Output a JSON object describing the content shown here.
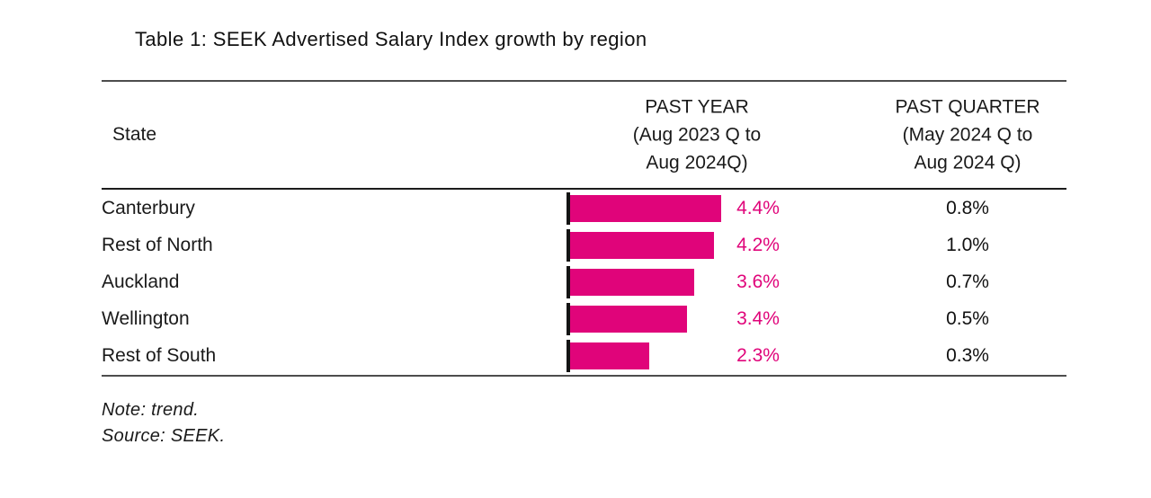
{
  "title": "Table 1: SEEK Advertised Salary Index growth by region",
  "header": {
    "state": "State",
    "past_year": [
      "PAST YEAR",
      "(Aug 2023 Q to",
      "Aug 2024Q)"
    ],
    "past_quarter": [
      "PAST QUARTER",
      "(May 2024 Q to",
      "Aug 2024 Q)"
    ]
  },
  "rows": [
    {
      "state": "Canterbury",
      "past_year_value": 4.4,
      "past_year_label": "4.4%",
      "past_quarter_label": "0.8%"
    },
    {
      "state": "Rest of North",
      "past_year_value": 4.2,
      "past_year_label": "4.2%",
      "past_quarter_label": "1.0%"
    },
    {
      "state": "Auckland",
      "past_year_value": 3.6,
      "past_year_label": "3.6%",
      "past_quarter_label": "0.7%"
    },
    {
      "state": "Wellington",
      "past_year_value": 3.4,
      "past_year_label": "3.4%",
      "past_quarter_label": "0.5%"
    },
    {
      "state": "Rest of South",
      "past_year_value": 2.3,
      "past_year_label": "2.3%",
      "past_quarter_label": "0.3%"
    }
  ],
  "footer": {
    "note": "Note: trend.",
    "source": "Source: SEEK."
  },
  "colors": {
    "bar_pink": "#E0047A",
    "value_text_pink": "#E0047A",
    "axis_tick_black": "#141414",
    "rule_gray": "#4d4d4d",
    "header_rule_black": "#1c1c1c"
  },
  "chart_data": {
    "type": "bar",
    "orientation": "horizontal",
    "title": "Table 1: SEEK Advertised Salary Index growth by region",
    "categories": [
      "Canterbury",
      "Rest of North",
      "Auckland",
      "Wellington",
      "Rest of South"
    ],
    "series": [
      {
        "name": "PAST YEAR (Aug 2023 Q to Aug 2024Q)",
        "values": [
          4.4,
          4.2,
          3.6,
          3.4,
          2.3
        ],
        "unit": "%",
        "rendered_as": "pink bars with pink data labels"
      },
      {
        "name": "PAST QUARTER (May 2024 Q to Aug 2024 Q)",
        "values": [
          0.8,
          1.0,
          0.7,
          0.5,
          0.3
        ],
        "unit": "%",
        "rendered_as": "plain text column"
      }
    ],
    "xlim": [
      0,
      4.4
    ],
    "grid": false,
    "legend_position": "none",
    "bar_color": "#E0047A",
    "annotations": [
      "Note: trend.",
      "Source: SEEK."
    ]
  }
}
